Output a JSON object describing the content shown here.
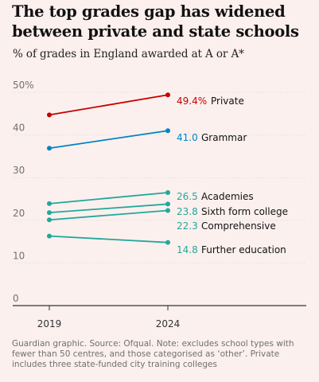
{
  "chart_data": {
    "type": "line",
    "title": "The top grades gap has widened between private and state schools",
    "subtitle": "% of grades in England awarded at A or A*",
    "x": [
      "2019",
      "2024"
    ],
    "ylim": [
      0,
      50
    ],
    "yticks": [
      0,
      10,
      20,
      30,
      40,
      50
    ],
    "ytick_labels": [
      "0",
      "10",
      "20",
      "30",
      "40",
      "50%"
    ],
    "grid": true,
    "series": [
      {
        "name": "Private",
        "values": [
          44.7,
          49.4
        ],
        "end_label": "49.4%",
        "color": "#c70000"
      },
      {
        "name": "Grammar",
        "values": [
          36.9,
          41.0
        ],
        "end_label": "41.0",
        "color": "#0084c6"
      },
      {
        "name": "Academies",
        "values": [
          23.9,
          26.5
        ],
        "end_label": "26.5",
        "color": "#22a89a"
      },
      {
        "name": "Sixth form college",
        "values": [
          21.8,
          23.8
        ],
        "end_label": "23.8",
        "color": "#22a89a"
      },
      {
        "name": "Comprehensive",
        "values": [
          20.1,
          22.3
        ],
        "end_label": "22.3",
        "color": "#22a89a"
      },
      {
        "name": "Further education",
        "values": [
          16.3,
          14.8
        ],
        "end_label": "14.8",
        "color": "#22a89a"
      }
    ]
  },
  "footnote": "Guardian graphic. Source: Ofqual. Note: excludes school types with fewer than 50 centres, and those categorised as ‘other’. Private includes three state-funded city training colleges",
  "colors": {
    "background": "#fbf0ee",
    "grid": "#dcdcdc",
    "axis": "#333333"
  }
}
